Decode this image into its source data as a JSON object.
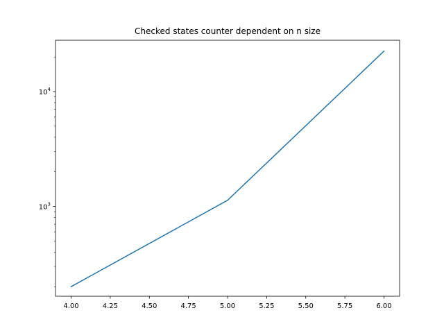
{
  "chart_data": {
    "type": "line",
    "title": "Checked states counter dependent on n size",
    "xlabel": "",
    "ylabel": "",
    "x": [
      4,
      5,
      6
    ],
    "series": [
      {
        "values": [
          200,
          1130,
          22500
        ],
        "color": "#1f77b4"
      }
    ],
    "xlim": [
      3.9,
      6.1
    ],
    "ylim": [
      165,
      28000
    ],
    "yscale": "log",
    "grid": false,
    "x_ticks": [
      {
        "value": 4.0,
        "label": "4.00"
      },
      {
        "value": 4.25,
        "label": "4.25"
      },
      {
        "value": 4.5,
        "label": "4.50"
      },
      {
        "value": 4.75,
        "label": "4.75"
      },
      {
        "value": 5.0,
        "label": "5.00"
      },
      {
        "value": 5.25,
        "label": "5.25"
      },
      {
        "value": 5.5,
        "label": "5.50"
      },
      {
        "value": 5.75,
        "label": "5.75"
      },
      {
        "value": 6.0,
        "label": "6.00"
      }
    ],
    "y_major_ticks": [
      {
        "value": 1000,
        "base": "10",
        "exponent": "3"
      },
      {
        "value": 10000,
        "base": "10",
        "exponent": "4"
      }
    ],
    "y_minor_ticks": [
      200,
      300,
      400,
      500,
      600,
      700,
      800,
      900,
      2000,
      3000,
      4000,
      5000,
      6000,
      7000,
      8000,
      9000,
      20000
    ]
  }
}
